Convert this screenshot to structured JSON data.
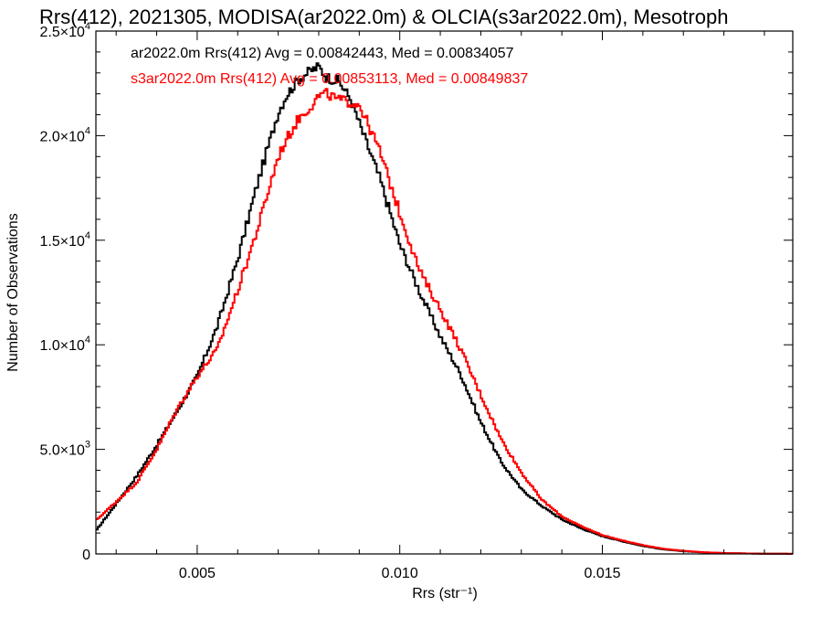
{
  "chart_data": {
    "type": "line",
    "title": "Rrs(412), 2021305, MODISA(ar2022.0m) & OLCIA(s3ar2022.0m), Mesotroph",
    "xlabel": "Rrs (str⁻¹)",
    "ylabel": "Number of Observations",
    "xlim": [
      0.0025,
      0.0197
    ],
    "ylim": [
      0,
      25000
    ],
    "x_ticks": [
      0.005,
      0.01,
      0.015
    ],
    "x_tick_labels": [
      "0.005",
      "0.010",
      "0.015"
    ],
    "y_ticks": [
      0,
      5000,
      10000,
      15000,
      20000,
      25000
    ],
    "y_tick_labels": [
      {
        "base": "0",
        "exp": ""
      },
      {
        "base": "5.0×10",
        "exp": "3"
      },
      {
        "base": "1.0×10",
        "exp": "4"
      },
      {
        "base": "1.5×10",
        "exp": "4"
      },
      {
        "base": "2.0×10",
        "exp": "4"
      },
      {
        "base": "2.5×10",
        "exp": "4"
      }
    ],
    "grid": false,
    "legend_position": "top-left",
    "series": [
      {
        "name": "ar2022.0m",
        "label": "ar2022.0m Rrs(412) Avg = 0.00842443, Med = 0.00834057",
        "color": "#000000",
        "x": [
          0.0025,
          0.003,
          0.0035,
          0.004,
          0.0045,
          0.005,
          0.0055,
          0.006,
          0.0065,
          0.007,
          0.0072,
          0.0075,
          0.0078,
          0.008,
          0.0082,
          0.0085,
          0.0088,
          0.009,
          0.0095,
          0.01,
          0.0105,
          0.011,
          0.0115,
          0.012,
          0.0125,
          0.013,
          0.0135,
          0.014,
          0.0145,
          0.015,
          0.0155,
          0.016,
          0.0165,
          0.017,
          0.0175,
          0.018,
          0.0185,
          0.019,
          0.0197
        ],
        "y": [
          1100,
          2400,
          3700,
          5200,
          6800,
          8500,
          10900,
          14100,
          17800,
          21100,
          21900,
          22700,
          23100,
          23300,
          22800,
          22600,
          21700,
          20600,
          18000,
          14800,
          12500,
          10400,
          8600,
          6300,
          4400,
          3100,
          2300,
          1650,
          1200,
          850,
          600,
          380,
          220,
          130,
          70,
          40,
          25,
          12,
          5
        ]
      },
      {
        "name": "s3ar2022.0m",
        "label": "s3ar2022.0m Rrs(412) Avg = 0.00853113, Med = 0.00849837",
        "color": "#ff0000",
        "x": [
          0.0025,
          0.003,
          0.0035,
          0.004,
          0.0045,
          0.005,
          0.0055,
          0.006,
          0.0065,
          0.007,
          0.0072,
          0.0075,
          0.0078,
          0.008,
          0.0082,
          0.0085,
          0.0088,
          0.009,
          0.0095,
          0.01,
          0.0105,
          0.011,
          0.0115,
          0.012,
          0.0125,
          0.013,
          0.0135,
          0.014,
          0.0145,
          0.015,
          0.0155,
          0.016,
          0.0165,
          0.017,
          0.0175,
          0.018,
          0.0185,
          0.019,
          0.0197
        ],
        "y": [
          1600,
          2500,
          3400,
          5000,
          6900,
          8500,
          9800,
          12600,
          15600,
          19000,
          19800,
          20800,
          21400,
          21900,
          22000,
          21700,
          21600,
          21500,
          19300,
          16300,
          13500,
          11700,
          9800,
          7600,
          5500,
          3900,
          2600,
          1800,
          1300,
          900,
          640,
          420,
          250,
          150,
          80,
          45,
          25,
          12,
          5
        ]
      }
    ]
  }
}
